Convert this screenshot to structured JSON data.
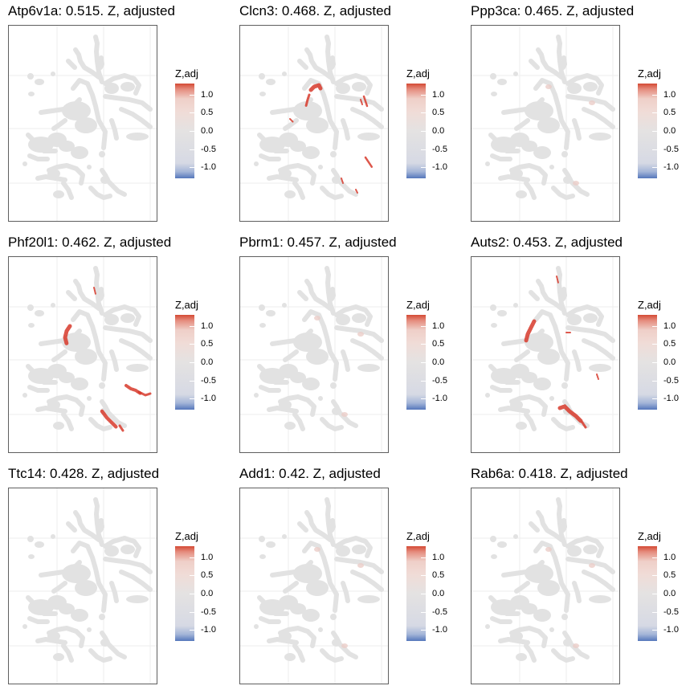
{
  "legend": {
    "title": "Z,adj",
    "ticks": [
      {
        "value": 1.0,
        "label": "1.0"
      },
      {
        "value": 0.5,
        "label": "0.5"
      },
      {
        "value": 0.0,
        "label": "0.0"
      },
      {
        "value": -0.5,
        "label": "-0.5"
      },
      {
        "value": -1.0,
        "label": "-1.0"
      }
    ],
    "range": [
      -1.3,
      1.3
    ],
    "colors": {
      "high": "#d73027",
      "mid": "#e0e0e0",
      "low": "#4f74b8"
    }
  },
  "colors": {
    "cell": "#e2e2e2",
    "highlight": "#d73a2c",
    "frame": "#5f5f5f",
    "grid": "#eeeeee"
  },
  "chart_data": [
    {
      "type": "scatter",
      "title": "Atp6v1a: 0.515. Z, adjusted",
      "highlight": "none"
    },
    {
      "type": "scatter",
      "title": "Clcn3: 0.468. Z, adjusted",
      "highlight": "strong"
    },
    {
      "type": "scatter",
      "title": "Ppp3ca: 0.465. Z, adjusted",
      "highlight": "faint"
    },
    {
      "type": "scatter",
      "title": "Phf20l1: 0.462. Z, adjusted",
      "highlight": "strong"
    },
    {
      "type": "scatter",
      "title": "Pbrm1: 0.457. Z, adjusted",
      "highlight": "faint"
    },
    {
      "type": "scatter",
      "title": "Auts2: 0.453. Z, adjusted",
      "highlight": "strong"
    },
    {
      "type": "scatter",
      "title": "Ttc14: 0.428. Z, adjusted",
      "highlight": "none"
    },
    {
      "type": "scatter",
      "title": "Add1: 0.42. Z, adjusted",
      "highlight": "faint"
    },
    {
      "type": "scatter",
      "title": "Rab6a: 0.418. Z, adjusted",
      "highlight": "faint"
    }
  ]
}
